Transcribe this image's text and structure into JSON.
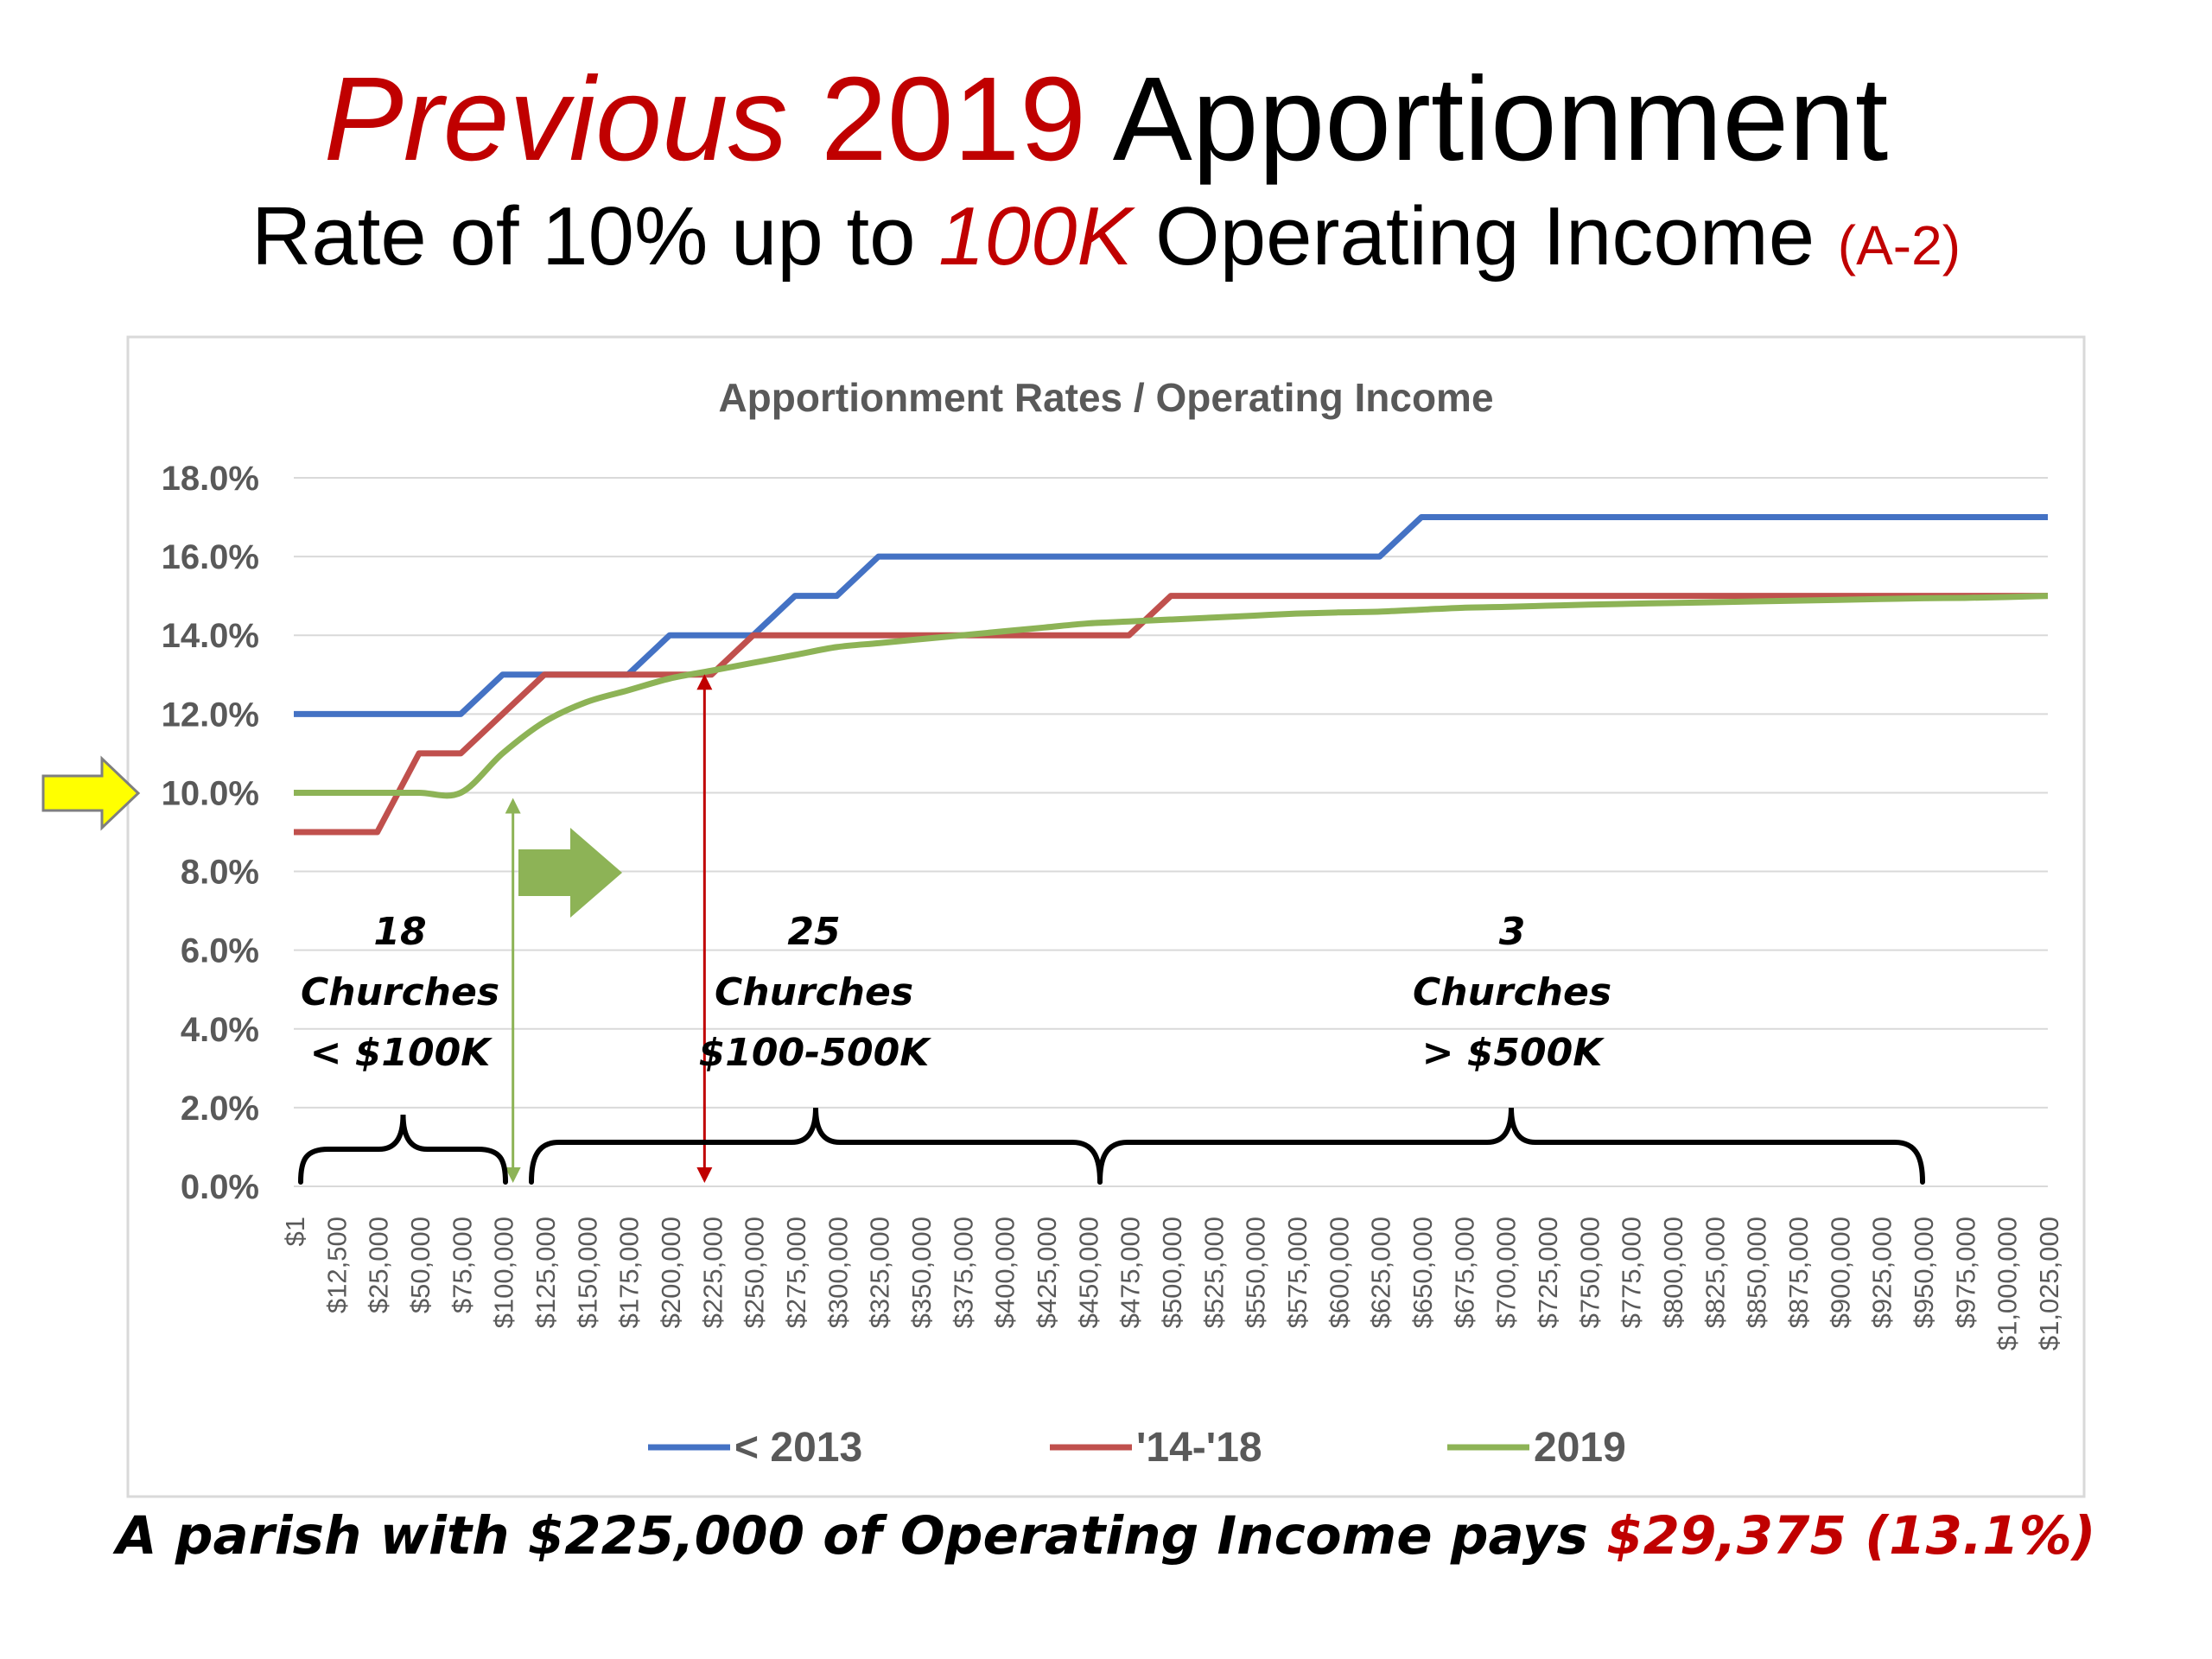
{
  "slide": {
    "title": {
      "part1": "Previous",
      "part2": "2019",
      "part3": "Apportionment"
    },
    "subtitle": {
      "part1": "Rate of 10% up to",
      "part2": "100K",
      "part3": "Operating Income",
      "part4": "(A-2)"
    },
    "footer": {
      "part1": "A parish with $225,000 of Operating Income pays",
      "part2": "$29,375 (13.1%)"
    }
  },
  "colors": {
    "series_2013": "#4472c4",
    "series_1418": "#c0504d",
    "series_2019": "#8db356",
    "accent_red": "#c00000",
    "grid": "#d9d9d9",
    "axis_text": "#595959",
    "yellow_arrow": "#ffff00",
    "green_arrow": "#8db356"
  },
  "icons": {
    "yellow_arrow": "right-arrow-icon",
    "green_arrow": "right-arrow-icon"
  },
  "chart_data": {
    "type": "line",
    "title": "Apportionment Rates / Operating Income",
    "ylim": [
      0,
      18
    ],
    "y_ticks": [
      "0.0%",
      "2.0%",
      "4.0%",
      "6.0%",
      "8.0%",
      "10.0%",
      "12.0%",
      "14.0%",
      "16.0%",
      "18.0%"
    ],
    "y_tick_values": [
      0,
      2,
      4,
      6,
      8,
      10,
      12,
      14,
      16,
      18
    ],
    "grid": true,
    "legend_position": "bottom",
    "categories": [
      "$1",
      "$12,500",
      "$25,000",
      "$50,000",
      "$75,000",
      "$100,000",
      "$125,000",
      "$150,000",
      "$175,000",
      "$200,000",
      "$225,000",
      "$250,000",
      "$275,000",
      "$300,000",
      "$325,000",
      "$350,000",
      "$375,000",
      "$400,000",
      "$425,000",
      "$450,000",
      "$475,000",
      "$500,000",
      "$525,000",
      "$550,000",
      "$575,000",
      "$600,000",
      "$625,000",
      "$650,000",
      "$675,000",
      "$700,000",
      "$725,000",
      "$750,000",
      "$775,000",
      "$800,000",
      "$825,000",
      "$850,000",
      "$875,000",
      "$900,000",
      "$925,000",
      "$950,000",
      "$975,000",
      "$1,000,000",
      "$1,025,000"
    ],
    "x_tick_labels": [
      "$1",
      "$12,500",
      "$25,000",
      "$50,000",
      "$75,000",
      "$100,000",
      "$125,000",
      "$150,000",
      "$175,000",
      "$200,000",
      "$225,000",
      "$250,000",
      "$275,000",
      "$300,000",
      "$325,000",
      "$350,000",
      "$375,000",
      "$400,000",
      "$425,000",
      "$450,000",
      "$475,000",
      "$500,000",
      "$525,000",
      "$550,000",
      "$575,000",
      "$600,000",
      "$625,000",
      "$650,000",
      "$675,000",
      "$700,000",
      "$725,000",
      "$750,000",
      "$775,000",
      "$800,000",
      "$825,000",
      "$850,000",
      "$875,000",
      "$900,000",
      "$925,000",
      "$950,000",
      "$975,000",
      "$1,000,000",
      "$1,025,000"
    ],
    "series": [
      {
        "name": "< 2013",
        "color": "#4472c4",
        "values": [
          12,
          12,
          12,
          12,
          12,
          13,
          13,
          13,
          13,
          14,
          14,
          14,
          15,
          15,
          16,
          16,
          16,
          16,
          16,
          16,
          16,
          16,
          16,
          16,
          16,
          16,
          16,
          17,
          17,
          17,
          17,
          17,
          17,
          17,
          17,
          17,
          17,
          17,
          17,
          17,
          17,
          17,
          17
        ]
      },
      {
        "name": "'14-'18",
        "color": "#c0504d",
        "values": [
          9,
          9,
          9,
          11,
          11,
          12,
          13,
          13,
          13,
          13,
          13,
          14,
          14,
          14,
          14,
          14,
          14,
          14,
          14,
          14,
          14,
          15,
          15,
          15,
          15,
          15,
          15,
          15,
          15,
          15,
          15,
          15,
          15,
          15,
          15,
          15,
          15,
          15,
          15,
          15,
          15,
          15,
          15
        ]
      },
      {
        "name": "2019",
        "color": "#8db356",
        "values": [
          10,
          10,
          10,
          10,
          10,
          11,
          11.8,
          12.3,
          12.6,
          12.9,
          13.1,
          13.3,
          13.5,
          13.7,
          13.8,
          13.9,
          14,
          14.1,
          14.2,
          14.3,
          14.35,
          14.4,
          14.45,
          14.5,
          14.55,
          14.58,
          14.6,
          14.65,
          14.7,
          14.72,
          14.75,
          14.78,
          14.8,
          14.82,
          14.84,
          14.86,
          14.88,
          14.9,
          14.92,
          14.94,
          14.95,
          14.97,
          15
        ]
      }
    ],
    "annotations": {
      "group_small": {
        "count": "18",
        "label": "Churches",
        "range": "< $100K"
      },
      "group_mid": {
        "count": "25",
        "label": "Churches",
        "range": "$100-500K"
      },
      "group_large": {
        "count": "3",
        "label": "Churches",
        "range": "> $500K"
      }
    }
  }
}
